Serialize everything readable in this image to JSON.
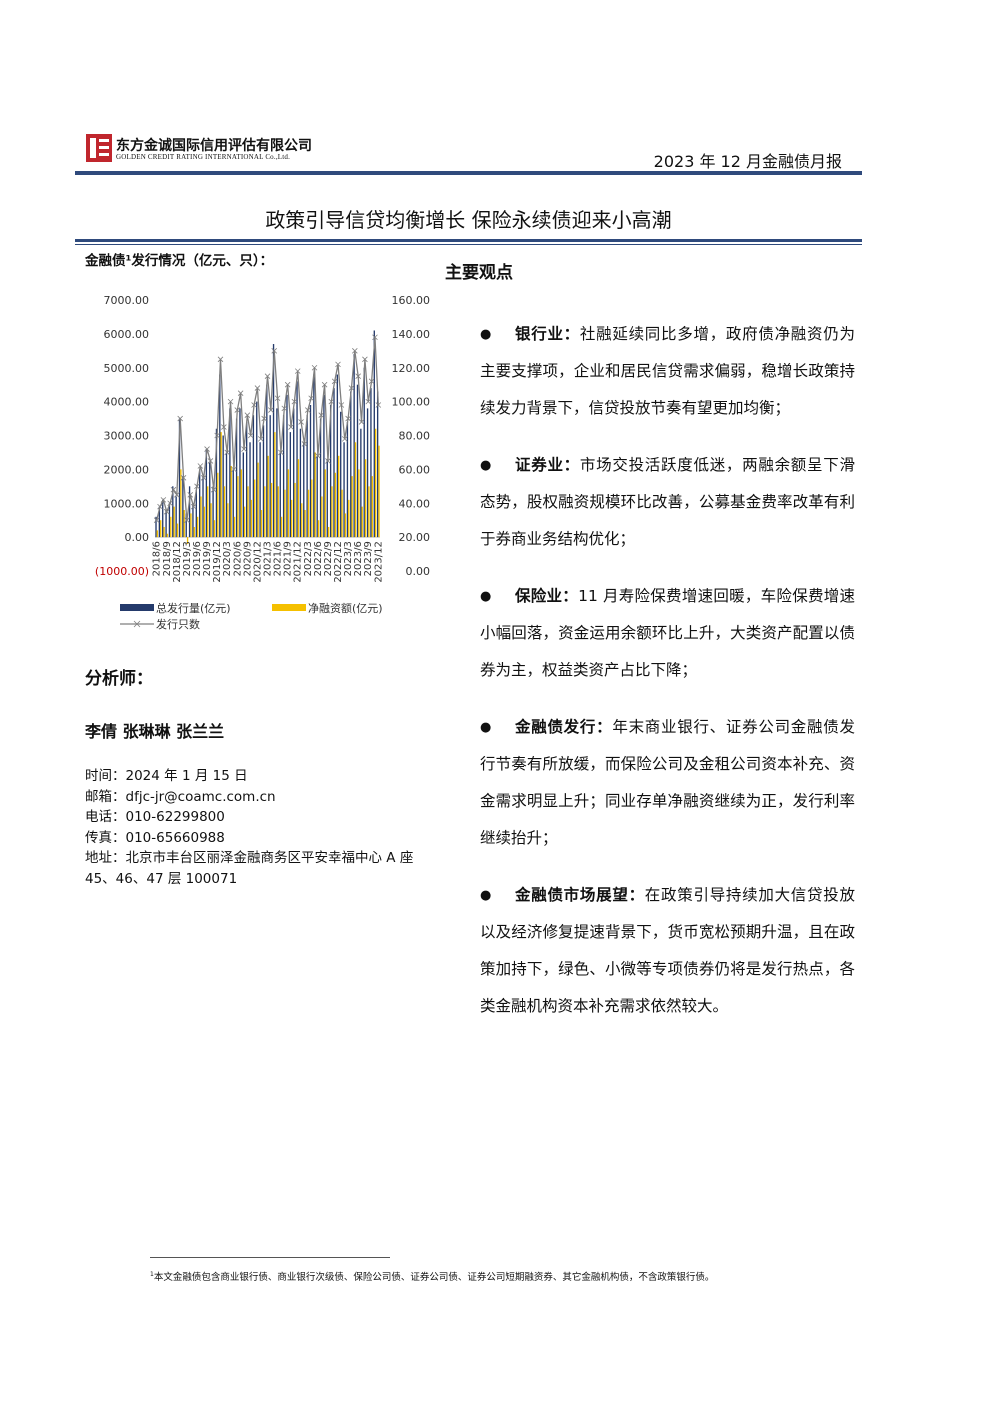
{
  "header": {
    "company": "东方金诚国际信用评估有限公司",
    "company_en": "GOLDEN CREDIT RATING INTERNATIONAL Co.,Ltd.",
    "report": "2023 年 12 月金融债月报"
  },
  "title": "政策引导信贷均衡增长  保险永续债迎来小高潮",
  "chart_data": {
    "type": "combo",
    "title": "金融债¹发行情况（亿元、只）：",
    "categories": [
      "2018/6",
      null,
      null,
      "2018/9",
      null,
      null,
      "2018/12",
      null,
      null,
      "2019/3",
      null,
      null,
      "2019/6",
      null,
      null,
      "2019/9",
      null,
      null,
      "2019/12",
      null,
      null,
      "2020/3",
      null,
      null,
      "2020/6",
      null,
      null,
      "2020/9",
      null,
      null,
      "2020/12",
      null,
      null,
      "2021/3",
      null,
      null,
      "2021/6",
      null,
      null,
      "2021/9",
      null,
      null,
      "2021/12",
      null,
      null,
      "2022/3",
      null,
      null,
      "2022/6",
      null,
      null,
      "2022/9",
      null,
      null,
      "2022/12",
      null,
      null,
      "2023/3",
      null,
      null,
      "2023/6",
      null,
      null,
      "2023/9",
      null,
      null,
      "2023/12"
    ],
    "series": [
      {
        "name": "总发行量(亿元)",
        "type": "bar",
        "color": "#243a6b",
        "values": [
          600,
          900,
          1100,
          800,
          1000,
          1500,
          1200,
          3500,
          1800,
          700,
          1500,
          1000,
          1400,
          2000,
          1800,
          2600,
          2200,
          1500,
          3200,
          4800,
          3000,
          2500,
          3800,
          2000,
          3500,
          3800,
          2500,
          3400,
          2800,
          3600,
          4000,
          2800,
          3300,
          4500,
          3600,
          5700,
          3800,
          2500,
          3600,
          4200,
          3100,
          3800,
          4600,
          3200,
          2800,
          3600,
          3900,
          4800,
          2400,
          3500,
          4200,
          2300,
          3900,
          4400,
          4800,
          3700,
          2800,
          3400,
          4300,
          5400,
          4500,
          3200,
          5000,
          3800,
          4400,
          6100,
          4300
        ]
      },
      {
        "name": "净融资额(亿元)",
        "type": "bar",
        "color": "#f5c000",
        "values": [
          200,
          500,
          300,
          100,
          600,
          900,
          400,
          2000,
          800,
          -200,
          700,
          300,
          600,
          1200,
          900,
          1500,
          1000,
          500,
          1900,
          3100,
          1500,
          1000,
          2100,
          600,
          1800,
          2000,
          900,
          1500,
          1100,
          1700,
          2200,
          800,
          1500,
          2400,
          1600,
          3100,
          1500,
          600,
          1400,
          2000,
          1100,
          1600,
          2300,
          1000,
          800,
          1400,
          1700,
          2500,
          500,
          1200,
          2000,
          300,
          1500,
          1900,
          2400,
          1400,
          700,
          1100,
          1800,
          2800,
          2000,
          900,
          2300,
          1500,
          1800,
          3200,
          2700
        ]
      },
      {
        "name": "发行只数",
        "type": "line",
        "axis": "y2",
        "color": "#7f7f7f",
        "values": [
          30,
          38,
          42,
          35,
          40,
          48,
          45,
          90,
          55,
          30,
          45,
          38,
          50,
          62,
          55,
          72,
          65,
          48,
          80,
          125,
          85,
          70,
          100,
          60,
          95,
          105,
          72,
          92,
          80,
          98,
          108,
          78,
          90,
          115,
          95,
          130,
          102,
          70,
          96,
          110,
          85,
          100,
          118,
          88,
          75,
          95,
          102,
          120,
          68,
          92,
          110,
          65,
          100,
          112,
          122,
          98,
          78,
          90,
          108,
          130,
          115,
          88,
          125,
          100,
          112,
          138,
          98
        ]
      }
    ],
    "ylim": [
      -1000,
      7000
    ],
    "yticks": [
      {
        "value": -1000,
        "label": "(1000.00)"
      },
      {
        "value": 0,
        "label": "0.00"
      },
      {
        "value": 1000,
        "label": "1000.00"
      },
      {
        "value": 2000,
        "label": "2000.00"
      },
      {
        "value": 3000,
        "label": "3000.00"
      },
      {
        "value": 4000,
        "label": "4000.00"
      },
      {
        "value": 5000,
        "label": "5000.00"
      },
      {
        "value": 6000,
        "label": "6000.00"
      },
      {
        "value": 7000,
        "label": "7000.00"
      }
    ],
    "y2lim": [
      0,
      160
    ],
    "y2ticks": [
      {
        "value": 0,
        "label": "0.00"
      },
      {
        "value": 20,
        "label": "20.00"
      },
      {
        "value": 40,
        "label": "40.00"
      },
      {
        "value": 60,
        "label": "60.00"
      },
      {
        "value": 80,
        "label": "80.00"
      },
      {
        "value": 100,
        "label": "100.00"
      },
      {
        "value": 120,
        "label": "120.00"
      },
      {
        "value": 140,
        "label": "140.00"
      },
      {
        "value": 160,
        "label": "160.00"
      }
    ],
    "grid": false,
    "legend": "bottom"
  },
  "analysts": {
    "heading": "分析师：",
    "names": "李倩 张琳琳 张兰兰",
    "contacts": [
      "时间：2024 年 1 月 15 日",
      "邮箱：dfjc-jr@coamc.com.cn",
      "电话：010-62299800",
      "传真：010-65660988",
      "地址：北京市丰台区丽泽金融商务区平安幸福中心 A 座 45、46、47 层  100071"
    ]
  },
  "views": {
    "heading": "主要观点",
    "items": [
      {
        "lead": "银行业：",
        "text": "社融延续同比多增，政府债净融资仍为主要支撑项，企业和居民信贷需求偏弱，稳增长政策持续发力背景下，信贷投放节奏有望更加均衡；"
      },
      {
        "lead": "证券业：",
        "text": "市场交投活跃度低迷，两融余额呈下滑态势，股权融资规模环比改善，公募基金费率改革有利于券商业务结构优化；"
      },
      {
        "lead": "保险业：",
        "text": "11 月寿险保费增速回暖，车险保费增速小幅回落，资金运用余额环比上升，大类资产配置以债券为主，权益类资产占比下降；"
      },
      {
        "lead": "金融债发行：",
        "text": "年末商业银行、证券公司金融债发行节奏有所放缓，而保险公司及金租公司资本补充、资金需求明显上升；同业存单净融资继续为正，发行利率继续抬升；"
      },
      {
        "lead": "金融债市场展望：",
        "text": "在政策引导持续加大信贷投放以及经济修复提速背景下，货币宽松预期升温，且在政策加持下，绿色、小微等专项债券仍将是发行热点，各类金融机构资本补充需求依然较大。"
      }
    ]
  },
  "footnote": {
    "mark": "1",
    "text": "本文金融债包含商业银行债、商业银行次级债、保险公司债、证券公司债、证券公司短期融资券、其它金融机构债，不含政策银行债。"
  }
}
